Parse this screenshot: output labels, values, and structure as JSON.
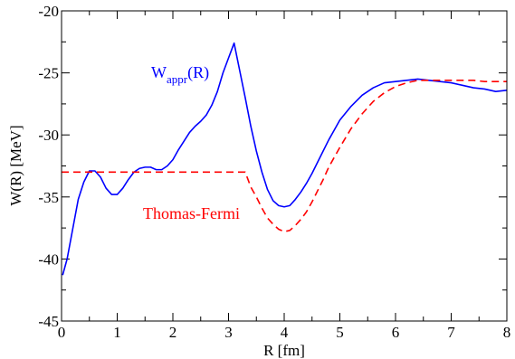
{
  "chart_data": {
    "type": "line",
    "xlabel": "R [fm]",
    "ylabel": "W(R) [MeV]",
    "xlim": [
      0,
      8
    ],
    "ylim": [
      -45,
      -20
    ],
    "x_ticks": [
      0,
      1,
      2,
      3,
      4,
      5,
      6,
      7,
      8
    ],
    "y_ticks": [
      -45,
      -40,
      -35,
      -30,
      -25,
      -20
    ],
    "x_tick_labels": [
      "0",
      "1",
      "2",
      "3",
      "4",
      "5",
      "6",
      "7",
      "8"
    ],
    "y_tick_labels": [
      "-45",
      "-40",
      "-35",
      "-30",
      "-25",
      "-20"
    ],
    "minor_ticks": true,
    "grid": false,
    "series": [
      {
        "name": "W_appr(R)",
        "label_main": "W",
        "label_sub": "appr",
        "label_tail": "(R)",
        "color": "#0000ff",
        "dash": "solid",
        "x": [
          0.02,
          0.1,
          0.2,
          0.3,
          0.4,
          0.5,
          0.6,
          0.7,
          0.8,
          0.9,
          1.0,
          1.1,
          1.2,
          1.3,
          1.4,
          1.5,
          1.6,
          1.7,
          1.8,
          1.9,
          2.0,
          2.1,
          2.2,
          2.3,
          2.4,
          2.5,
          2.6,
          2.7,
          2.8,
          2.9,
          3.0,
          3.1,
          3.2,
          3.3,
          3.4,
          3.5,
          3.6,
          3.7,
          3.8,
          3.9,
          4.0,
          4.1,
          4.2,
          4.3,
          4.4,
          4.5,
          4.6,
          4.7,
          4.8,
          4.9,
          5.0,
          5.2,
          5.4,
          5.6,
          5.8,
          6.0,
          6.2,
          6.4,
          6.6,
          6.8,
          7.0,
          7.2,
          7.4,
          7.6,
          7.8,
          8.0
        ],
        "y": [
          -41.3,
          -40.0,
          -37.6,
          -35.2,
          -33.8,
          -32.9,
          -32.9,
          -33.4,
          -34.3,
          -34.8,
          -34.8,
          -34.3,
          -33.6,
          -33.0,
          -32.7,
          -32.6,
          -32.6,
          -32.8,
          -32.8,
          -32.5,
          -32.0,
          -31.2,
          -30.5,
          -29.8,
          -29.3,
          -28.9,
          -28.4,
          -27.6,
          -26.5,
          -25.0,
          -23.8,
          -22.6,
          -24.8,
          -27.0,
          -29.3,
          -31.3,
          -33.0,
          -34.4,
          -35.3,
          -35.7,
          -35.8,
          -35.7,
          -35.2,
          -34.6,
          -33.9,
          -33.1,
          -32.2,
          -31.3,
          -30.4,
          -29.6,
          -28.8,
          -27.7,
          -26.8,
          -26.2,
          -25.8,
          -25.7,
          -25.6,
          -25.5,
          -25.6,
          -25.7,
          -25.8,
          -26.0,
          -26.2,
          -26.3,
          -26.5,
          -26.4
        ]
      },
      {
        "name": "Thomas-Fermi",
        "color": "#ff0000",
        "dash": "8,5",
        "x": [
          0,
          0.5,
          1.0,
          1.5,
          2.0,
          2.5,
          3.0,
          3.3,
          3.4,
          3.5,
          3.6,
          3.7,
          3.8,
          3.9,
          4.0,
          4.1,
          4.2,
          4.3,
          4.4,
          4.5,
          4.6,
          4.7,
          4.8,
          4.9,
          5.0,
          5.2,
          5.4,
          5.6,
          5.8,
          6.0,
          6.2,
          6.4,
          6.6,
          6.8,
          7.0,
          7.2,
          7.4,
          7.6,
          7.8,
          8.0
        ],
        "y": [
          -33.0,
          -33.0,
          -33.0,
          -33.0,
          -33.0,
          -33.0,
          -33.0,
          -33.0,
          -34.2,
          -35.0,
          -35.9,
          -36.7,
          -37.2,
          -37.6,
          -37.8,
          -37.7,
          -37.3,
          -36.8,
          -36.2,
          -35.4,
          -34.5,
          -33.6,
          -32.6,
          -31.8,
          -31.0,
          -29.5,
          -28.3,
          -27.3,
          -26.6,
          -26.1,
          -25.8,
          -25.6,
          -25.6,
          -25.6,
          -25.6,
          -25.6,
          -25.6,
          -25.7,
          -25.7,
          -25.7
        ]
      }
    ]
  }
}
